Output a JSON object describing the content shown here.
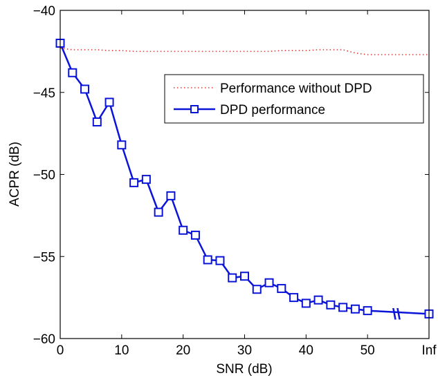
{
  "chart_data": {
    "type": "line",
    "xlabel": "SNR (dB)",
    "ylabel": "ACPR (dB)",
    "xlim": [
      0,
      60
    ],
    "ylim": [
      -60,
      -40
    ],
    "x_ticks": [
      0,
      10,
      20,
      30,
      40,
      50,
      60
    ],
    "x_tick_labels": [
      "0",
      "10",
      "20",
      "30",
      "40",
      "50",
      "Inf"
    ],
    "y_ticks": [
      -60,
      -55,
      -50,
      -45,
      -40
    ],
    "y_tick_labels": [
      "−60",
      "−55",
      "−50",
      "−45",
      "−40"
    ],
    "axis_break_marker": "\\\\",
    "grid": false,
    "legend_position": "upper-right",
    "series": [
      {
        "name": "Performance without DPD",
        "style": "dotted",
        "color": "#e8302e",
        "x": [
          0,
          2,
          4,
          6,
          8,
          10,
          12,
          14,
          16,
          18,
          20,
          22,
          24,
          26,
          28,
          30,
          32,
          34,
          36,
          38,
          40,
          42,
          44,
          46,
          48,
          50,
          52,
          54,
          56,
          58,
          60
        ],
        "y": [
          -42.3,
          -42.4,
          -42.4,
          -42.4,
          -42.45,
          -42.45,
          -42.5,
          -42.5,
          -42.5,
          -42.5,
          -42.5,
          -42.5,
          -42.5,
          -42.5,
          -42.5,
          -42.5,
          -42.5,
          -42.5,
          -42.45,
          -42.45,
          -42.45,
          -42.4,
          -42.4,
          -42.4,
          -42.6,
          -42.7,
          -42.7,
          -42.7,
          -42.7,
          -42.7,
          -42.7
        ]
      },
      {
        "name": "DPD performance",
        "style": "solid-square-markers",
        "color": "#0a14d8",
        "x": [
          0,
          2,
          4,
          6,
          8,
          10,
          12,
          14,
          16,
          18,
          20,
          22,
          24,
          26,
          28,
          30,
          32,
          34,
          36,
          38,
          40,
          42,
          44,
          46,
          48,
          50,
          60
        ],
        "y": [
          -42.0,
          -43.8,
          -44.8,
          -46.8,
          -45.6,
          -48.2,
          -50.5,
          -50.3,
          -52.3,
          -51.3,
          -53.4,
          -53.7,
          -55.2,
          -55.25,
          -56.3,
          -56.2,
          -57.0,
          -56.6,
          -56.95,
          -57.5,
          -57.85,
          -57.65,
          -57.95,
          -58.1,
          -58.2,
          -58.3,
          -58.5
        ]
      }
    ]
  }
}
